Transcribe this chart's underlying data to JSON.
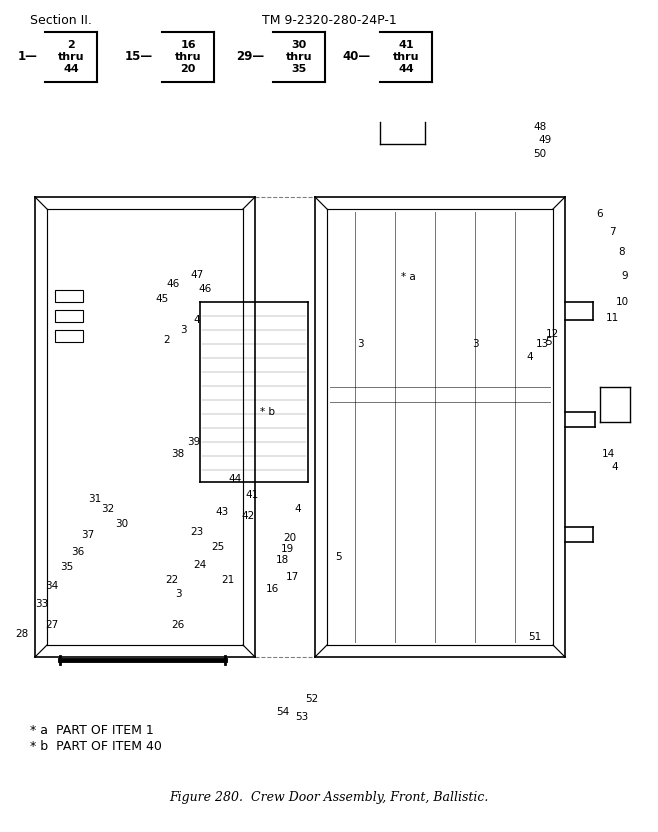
{
  "header_left": "Section II.",
  "header_right": "TM 9-2320-280-24P-1",
  "figure_caption": "Figure 280.  Crew Door Assembly, Front, Ballistic.",
  "footnote_a": "* a  PART OF ITEM 1",
  "footnote_b": "* b  PART OF ITEM 40",
  "nav_items": [
    {
      "label": "1",
      "box": "2\nthru\n44"
    },
    {
      "label": "15",
      "box": "16\nthru\n20"
    },
    {
      "label": "29",
      "box": "30\nthru\n35"
    },
    {
      "label": "40",
      "box": "41\nthru\n44"
    }
  ],
  "bg_color": "#ffffff",
  "text_color": "#000000",
  "line_color": "#000000"
}
